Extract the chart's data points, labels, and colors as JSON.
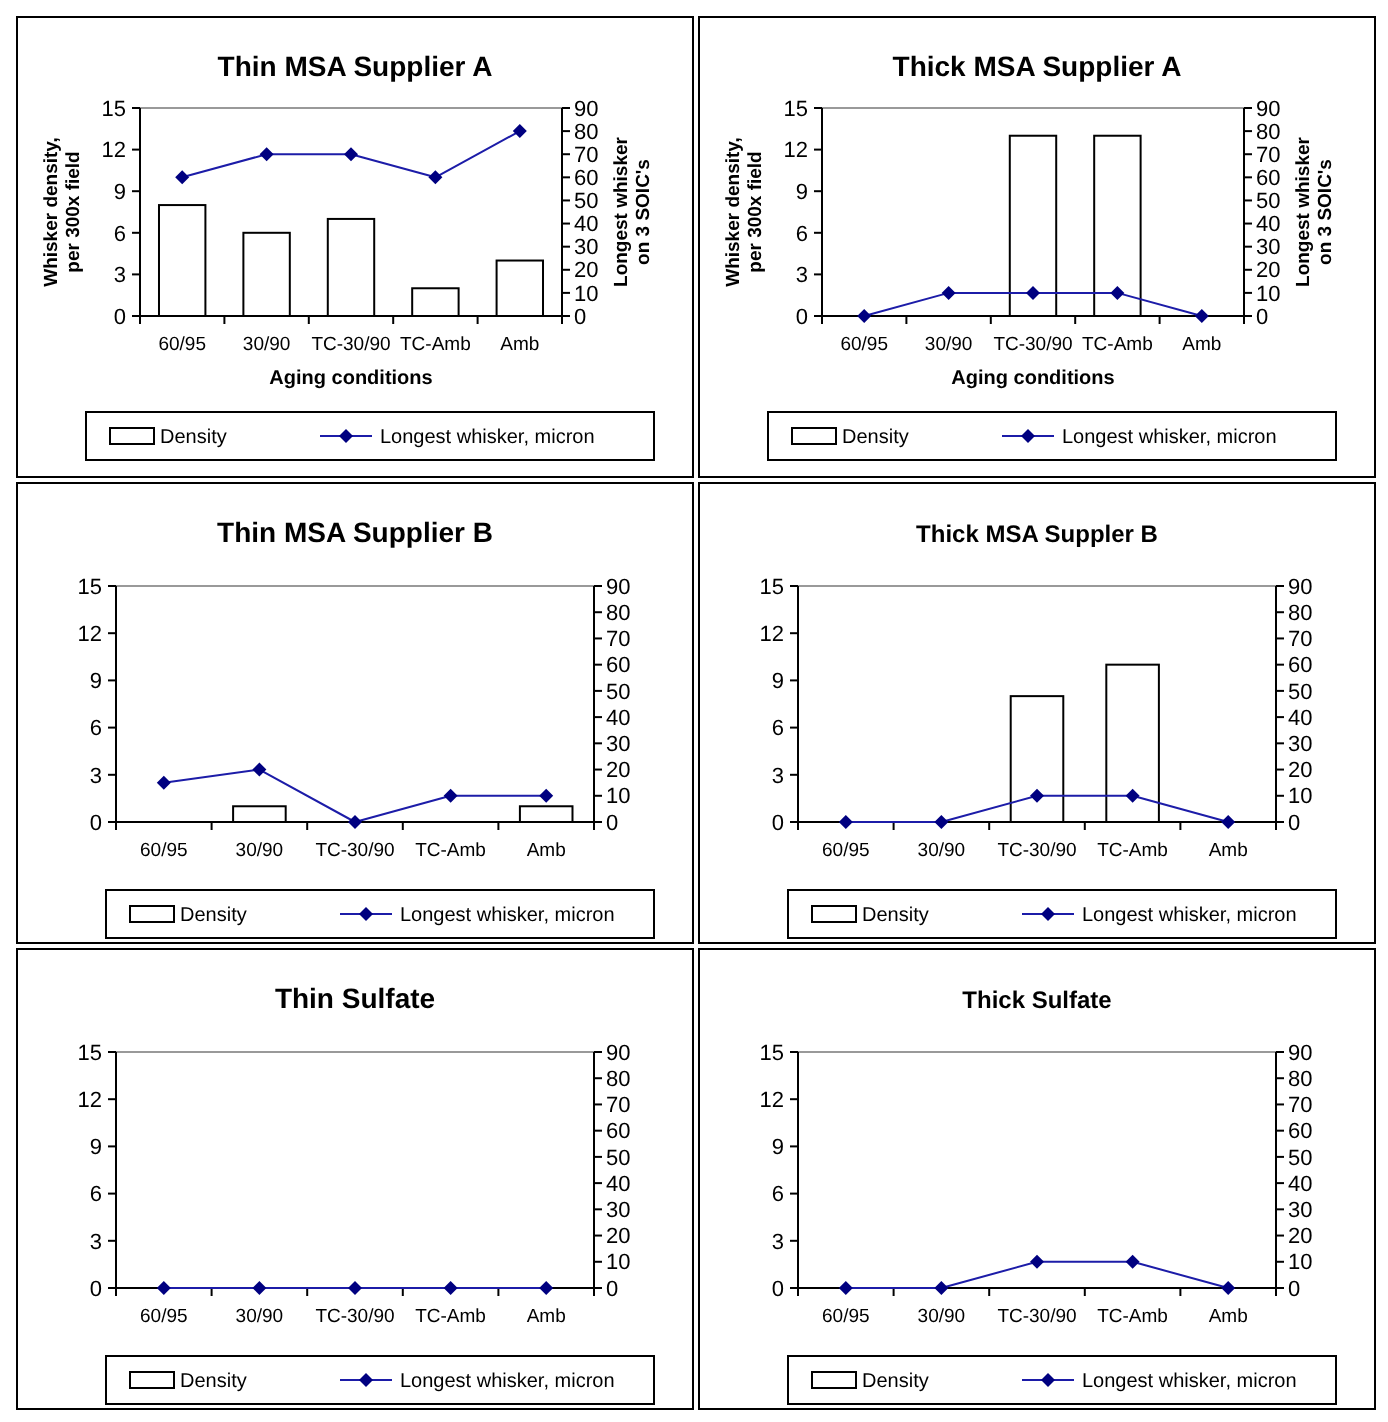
{
  "chart_data": [
    {
      "type": "bar",
      "title": "Thin MSA Supplier A",
      "xlabel": "Aging conditions",
      "ylabel": "Whisker density, per 300x field",
      "y2label": "Longest whisker on 3 SOIC's",
      "categories": [
        "60/95",
        "30/90",
        "TC-30/90",
        "TC-Amb",
        "Amb"
      ],
      "ylim": [
        0,
        15
      ],
      "yticks": [
        0,
        3,
        6,
        9,
        12,
        15
      ],
      "y2lim": [
        0,
        90
      ],
      "y2ticks": [
        0,
        10,
        20,
        30,
        40,
        50,
        60,
        70,
        80,
        90
      ],
      "legend": "bottom",
      "marker": "diamond",
      "series": [
        {
          "name": "Density",
          "color": "#ffffff",
          "values": [
            8,
            6,
            7,
            2,
            4
          ]
        },
        {
          "name": "Longest whisker, micron",
          "type": "line",
          "axis": "y2",
          "color": "#1c1ca8",
          "values": [
            60,
            70,
            70,
            60,
            80
          ]
        }
      ]
    },
    {
      "type": "bar",
      "title": "Thick MSA Supplier A",
      "xlabel": "Aging conditions",
      "ylabel": "Whisker density, per 300x field",
      "y2label": "Longest whisker on 3 SOIC's",
      "categories": [
        "60/95",
        "30/90",
        "TC-30/90",
        "TC-Amb",
        "Amb"
      ],
      "ylim": [
        0,
        15
      ],
      "yticks": [
        0,
        3,
        6,
        9,
        12,
        15
      ],
      "y2lim": [
        0,
        90
      ],
      "y2ticks": [
        0,
        10,
        20,
        30,
        40,
        50,
        60,
        70,
        80,
        90
      ],
      "legend": "bottom",
      "marker": "diamond",
      "series": [
        {
          "name": "Density",
          "color": "#ffffff",
          "values": [
            0,
            0,
            13,
            13,
            0
          ]
        },
        {
          "name": "Longest whisker, micron",
          "type": "line",
          "axis": "y2",
          "color": "#1c1ca8",
          "values": [
            0,
            10,
            10,
            10,
            0
          ]
        }
      ]
    },
    {
      "type": "bar",
      "title": "Thin MSA Supplier B",
      "categories": [
        "60/95",
        "30/90",
        "TC-30/90",
        "TC-Amb",
        "Amb"
      ],
      "ylim": [
        0,
        15
      ],
      "yticks": [
        0,
        3,
        6,
        9,
        12,
        15
      ],
      "y2lim": [
        0,
        90
      ],
      "y2ticks": [
        0,
        10,
        20,
        30,
        40,
        50,
        60,
        70,
        80,
        90
      ],
      "legend": "bottom",
      "marker": "diamond",
      "series": [
        {
          "name": "Density",
          "color": "#ffffff",
          "values": [
            0,
            1,
            0,
            0,
            1
          ]
        },
        {
          "name": "Longest whisker, micron",
          "type": "line",
          "axis": "y2",
          "color": "#1c1ca8",
          "values": [
            15,
            20,
            0,
            10,
            10
          ]
        }
      ]
    },
    {
      "type": "bar",
      "title": "Thick MSA Suppler B",
      "categories": [
        "60/95",
        "30/90",
        "TC-30/90",
        "TC-Amb",
        "Amb"
      ],
      "ylim": [
        0,
        15
      ],
      "yticks": [
        0,
        3,
        6,
        9,
        12,
        15
      ],
      "y2lim": [
        0,
        90
      ],
      "y2ticks": [
        0,
        10,
        20,
        30,
        40,
        50,
        60,
        70,
        80,
        90
      ],
      "legend": "bottom",
      "marker": "diamond",
      "series": [
        {
          "name": "Density",
          "color": "#ffffff",
          "values": [
            0,
            0,
            8,
            10,
            0
          ]
        },
        {
          "name": "Longest whisker, micron",
          "type": "line",
          "axis": "y2",
          "color": "#1c1ca8",
          "values": [
            0,
            0,
            10,
            10,
            0
          ]
        }
      ]
    },
    {
      "type": "bar",
      "title": "Thin Sulfate",
      "categories": [
        "60/95",
        "30/90",
        "TC-30/90",
        "TC-Amb",
        "Amb"
      ],
      "ylim": [
        0,
        15
      ],
      "yticks": [
        0,
        3,
        6,
        9,
        12,
        15
      ],
      "y2lim": [
        0,
        90
      ],
      "y2ticks": [
        0,
        10,
        20,
        30,
        40,
        50,
        60,
        70,
        80,
        90
      ],
      "legend": "bottom",
      "marker": "diamond",
      "series": [
        {
          "name": "Density",
          "color": "#ffffff",
          "values": [
            0,
            0,
            0,
            0,
            0
          ]
        },
        {
          "name": "Longest whisker, micron",
          "type": "line",
          "axis": "y2",
          "color": "#1c1ca8",
          "values": [
            0,
            0,
            0,
            0,
            0
          ]
        }
      ]
    },
    {
      "type": "bar",
      "title": "Thick Sulfate",
      "categories": [
        "60/95",
        "30/90",
        "TC-30/90",
        "TC-Amb",
        "Amb"
      ],
      "ylim": [
        0,
        15
      ],
      "yticks": [
        0,
        3,
        6,
        9,
        12,
        15
      ],
      "y2lim": [
        0,
        90
      ],
      "y2ticks": [
        0,
        10,
        20,
        30,
        40,
        50,
        60,
        70,
        80,
        90
      ],
      "legend": "bottom",
      "marker": "diamond",
      "series": [
        {
          "name": "Density",
          "color": "#ffffff",
          "values": [
            0,
            0,
            0,
            0,
            0
          ]
        },
        {
          "name": "Longest whisker, micron",
          "type": "line",
          "axis": "y2",
          "color": "#1c1ca8",
          "values": [
            0,
            0,
            10,
            10,
            0
          ]
        }
      ]
    }
  ]
}
